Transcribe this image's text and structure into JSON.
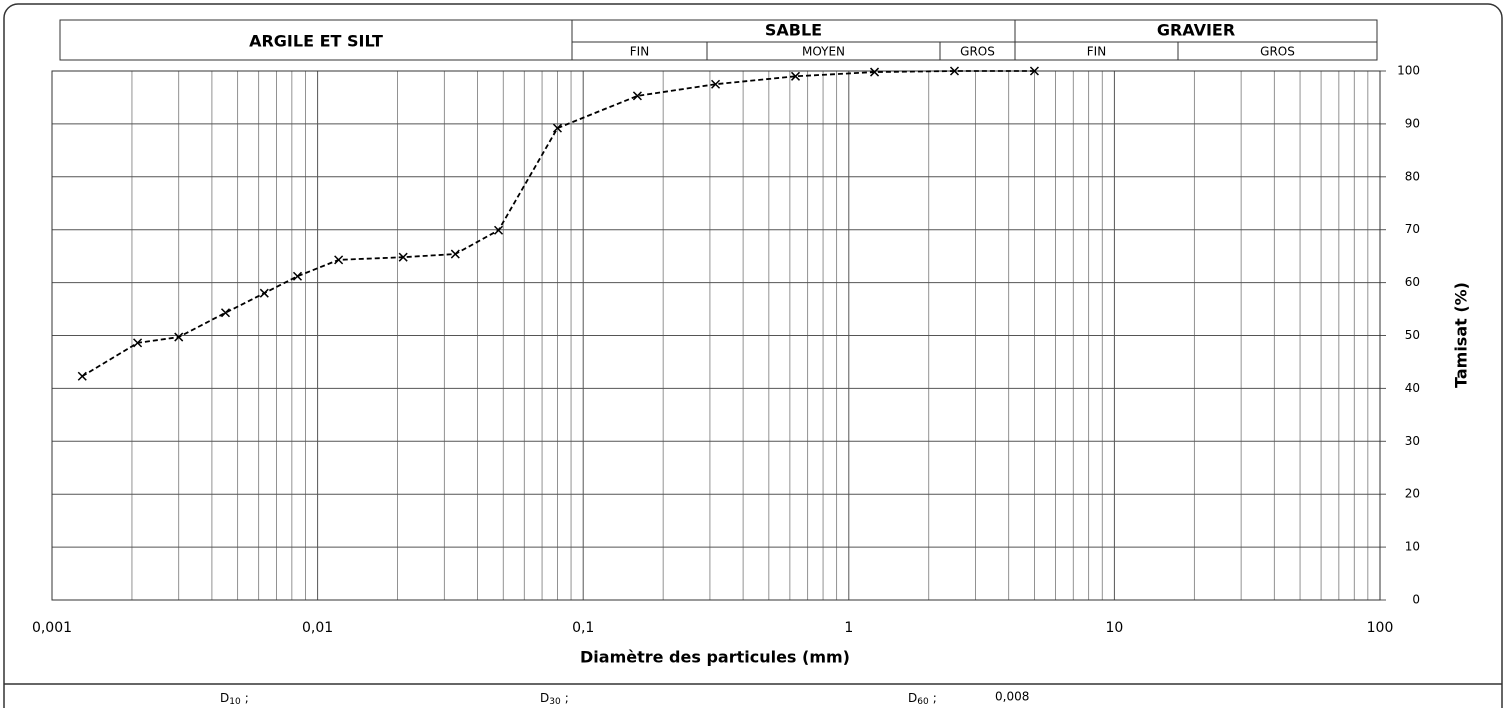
{
  "chart_data": {
    "type": "line",
    "xlabel": "Diamètre des particules (mm)",
    "ylabel": "Tamisat (%)",
    "log_x": true,
    "grid": true,
    "color": "#000000",
    "xlim": [
      0.001,
      100
    ],
    "ylim": [
      0,
      100
    ],
    "xticks": [
      {
        "value": 0.001,
        "label": "0,001"
      },
      {
        "value": 0.01,
        "label": "0,01"
      },
      {
        "value": 0.1,
        "label": "0,1"
      },
      1,
      10,
      100
    ],
    "yticks": [
      0,
      10,
      20,
      30,
      40,
      50,
      60,
      70,
      80,
      90,
      100
    ],
    "x": [
      0.0013,
      0.0021,
      0.003,
      0.0045,
      0.0063,
      0.0084,
      0.012,
      0.021,
      0.033,
      0.048,
      0.08,
      0.16,
      0.315,
      0.63,
      1.25,
      2.5,
      5
    ],
    "values": [
      42.3,
      48.6,
      49.7,
      54.3,
      58,
      61.2,
      64.3,
      64.8,
      65.4,
      69.9,
      89.2,
      95.3,
      97.5,
      99,
      99.8,
      100,
      100
    ],
    "zones": [
      {
        "name": "ARGILE ET SILT",
        "subzones": []
      },
      {
        "name": "SABLE",
        "subzones": [
          "FIN",
          "MOYEN",
          "GROS"
        ]
      },
      {
        "name": "GRAVIER",
        "subzones": [
          "FIN",
          "GROS"
        ]
      }
    ]
  },
  "footer": [
    {
      "symbol": "D",
      "subscript": "10",
      "separator": ";"
    },
    {
      "symbol": "D",
      "subscript": "30",
      "separator": ";"
    },
    {
      "symbol": "D",
      "subscript": "60",
      "separator": ";",
      "value": "0,008"
    }
  ]
}
